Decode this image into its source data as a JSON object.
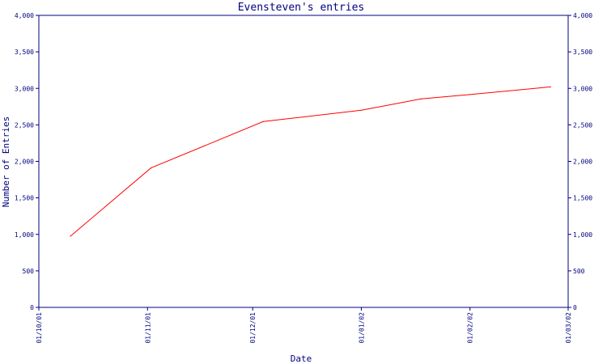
{
  "chart_data": {
    "type": "line",
    "title": "Evensteven's entries",
    "xlabel": "Date",
    "ylabel": "Number of Entries",
    "x_tick_labels": [
      "01/10/01",
      "01/11/01",
      "01/12/01",
      "01/01/02",
      "01/02/02",
      "01/03/02"
    ],
    "x_ticks": [
      "2001-10-01",
      "2001-11-01",
      "2001-12-01",
      "2002-01-01",
      "2002-02-01",
      "2002-03-01"
    ],
    "xlim": [
      "2001-10-01",
      "2002-03-01"
    ],
    "ylim": [
      0,
      4000
    ],
    "y_ticks": [
      0,
      500,
      1000,
      1500,
      2000,
      2500,
      3000,
      3500,
      4000
    ],
    "y_tick_labels": [
      "0",
      "500",
      "1,000",
      "1,500",
      "2,000",
      "2,500",
      "3,000",
      "3,500",
      "4,000"
    ],
    "right_axis_mirrors_left": true,
    "grid": false,
    "series": [
      {
        "color": "#ff0000",
        "points": [
          {
            "x": "2001-10-10",
            "y": 975
          },
          {
            "x": "2001-11-02",
            "y": 1910
          },
          {
            "x": "2001-12-04",
            "y": 2545
          },
          {
            "x": "2002-01-01",
            "y": 2700
          },
          {
            "x": "2002-01-18",
            "y": 2855
          },
          {
            "x": "2002-02-01",
            "y": 2915
          },
          {
            "x": "2002-02-24",
            "y": 3020
          }
        ]
      }
    ],
    "colors": {
      "axis": "#000080",
      "background": "#ffffff"
    }
  }
}
